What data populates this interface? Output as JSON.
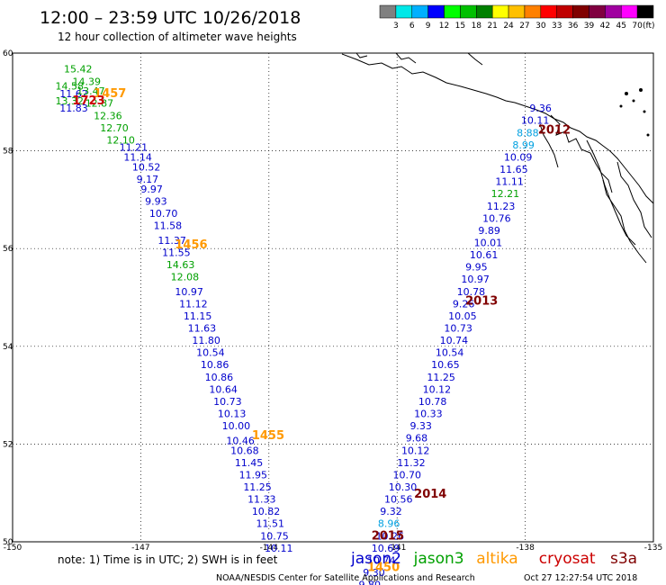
{
  "header": {
    "title": "12:00 – 23:59 UTC 10/26/2018",
    "subtitle": "12 hour collection of altimeter wave heights"
  },
  "colorbar": {
    "unit": "(ft)",
    "ticks": [
      "3",
      "6",
      "9",
      "12",
      "15",
      "18",
      "21",
      "24",
      "27",
      "30",
      "33",
      "36",
      "39",
      "42",
      "45",
      "70"
    ],
    "colors": [
      "#808080",
      "#00e8e8",
      "#00b0ff",
      "#0000ff",
      "#00ff00",
      "#00c000",
      "#008000",
      "#ffff00",
      "#ffc000",
      "#ff8000",
      "#ff0000",
      "#c00000",
      "#800000",
      "#800040",
      "#a000a0",
      "#ff00ff",
      "#000000"
    ]
  },
  "footer": {
    "note": "note:  1) Time is in UTC;  2) SWH is in feet",
    "legend": [
      {
        "name": "jason2",
        "color": "#0000cc"
      },
      {
        "name": "jason3",
        "color": "#00a000"
      },
      {
        "name": "altika",
        "color": "#ff9900"
      },
      {
        "name": "cryosat",
        "color": "#cc0000"
      },
      {
        "name": "s3a",
        "color": "#800000"
      }
    ],
    "credit": "NOAA/NESDIS Center for Satellite Applications and Research",
    "timestamp": "Oct 27 12:27:54 UTC 2018"
  },
  "chart_data": {
    "type": "scatter",
    "title": "12:00 – 23:59 UTC 10/26/2018",
    "subtitle": "12 hour collection of altimeter wave heights",
    "xlim": [
      -150,
      -135
    ],
    "ylim": [
      50,
      60
    ],
    "x_ticks": [
      "-150",
      "-147",
      "-144",
      "-141",
      "-138",
      "-135"
    ],
    "y_ticks": [
      "50",
      "52",
      "54",
      "56",
      "58",
      "60"
    ],
    "grid": true,
    "series": [
      {
        "name": "jason2",
        "color": "#0000cc",
        "points": [
          {
            "lon": -148.9,
            "lat": 59.1,
            "v": "11.62"
          },
          {
            "lon": -148.9,
            "lat": 58.8,
            "v": "11.83"
          },
          {
            "lon": -147.5,
            "lat": 58.0,
            "v": "11.21"
          },
          {
            "lon": -147.4,
            "lat": 57.8,
            "v": "11.14"
          },
          {
            "lon": -147.2,
            "lat": 57.6,
            "v": "10.52"
          },
          {
            "lon": -147.1,
            "lat": 57.35,
            "v": "9.17"
          },
          {
            "lon": -147.0,
            "lat": 57.15,
            "v": "9.97"
          },
          {
            "lon": -146.9,
            "lat": 56.9,
            "v": "9.93"
          },
          {
            "lon": -146.8,
            "lat": 56.65,
            "v": "10.70"
          },
          {
            "lon": -146.7,
            "lat": 56.4,
            "v": "11.58"
          },
          {
            "lon": -146.6,
            "lat": 56.1,
            "v": "11.37"
          },
          {
            "lon": -146.5,
            "lat": 55.85,
            "v": "11.55"
          },
          {
            "lon": -146.2,
            "lat": 55.05,
            "v": "10.97"
          },
          {
            "lon": -146.1,
            "lat": 54.8,
            "v": "11.12"
          },
          {
            "lon": -146.0,
            "lat": 54.55,
            "v": "11.15"
          },
          {
            "lon": -145.9,
            "lat": 54.3,
            "v": "11.63"
          },
          {
            "lon": -145.8,
            "lat": 54.05,
            "v": "11.80"
          },
          {
            "lon": -145.7,
            "lat": 53.8,
            "v": "10.54"
          },
          {
            "lon": -145.6,
            "lat": 53.55,
            "v": "10.86"
          },
          {
            "lon": -145.5,
            "lat": 53.3,
            "v": "10.86"
          },
          {
            "lon": -145.4,
            "lat": 53.05,
            "v": "10.64"
          },
          {
            "lon": -145.3,
            "lat": 52.8,
            "v": "10.73"
          },
          {
            "lon": -145.2,
            "lat": 52.55,
            "v": "10.13"
          },
          {
            "lon": -145.1,
            "lat": 52.3,
            "v": "10.00"
          },
          {
            "lon": -145.0,
            "lat": 52.0,
            "v": "10.46"
          },
          {
            "lon": -144.9,
            "lat": 51.8,
            "v": "10.68"
          },
          {
            "lon": -144.8,
            "lat": 51.55,
            "v": "11.45"
          },
          {
            "lon": -144.7,
            "lat": 51.3,
            "v": "11.95"
          },
          {
            "lon": -144.6,
            "lat": 51.05,
            "v": "11.25"
          },
          {
            "lon": -144.5,
            "lat": 50.8,
            "v": "11.33"
          },
          {
            "lon": -144.4,
            "lat": 50.55,
            "v": "10.82"
          },
          {
            "lon": -144.3,
            "lat": 50.3,
            "v": "11.51"
          },
          {
            "lon": -144.2,
            "lat": 50.05,
            "v": "10.75"
          },
          {
            "lon": -144.1,
            "lat": 49.8,
            "v": "10.11"
          },
          {
            "lon": -137.9,
            "lat": 58.8,
            "v": "9.36"
          },
          {
            "lon": -138.1,
            "lat": 58.55,
            "v": "10.11"
          },
          {
            "lon": -138.5,
            "lat": 57.8,
            "v": "10.09"
          },
          {
            "lon": -138.6,
            "lat": 57.55,
            "v": "11.65"
          },
          {
            "lon": -138.7,
            "lat": 57.3,
            "v": "11.11"
          },
          {
            "lon": -138.9,
            "lat": 56.8,
            "v": "11.23"
          },
          {
            "lon": -139.0,
            "lat": 56.55,
            "v": "10.76"
          },
          {
            "lon": -139.1,
            "lat": 56.3,
            "v": "9.89"
          },
          {
            "lon": -139.2,
            "lat": 56.05,
            "v": "10.01"
          },
          {
            "lon": -139.3,
            "lat": 55.8,
            "v": "10.61"
          },
          {
            "lon": -139.4,
            "lat": 55.55,
            "v": "9.95"
          },
          {
            "lon": -139.5,
            "lat": 55.3,
            "v": "10.97"
          },
          {
            "lon": -139.6,
            "lat": 55.05,
            "v": "10.78"
          },
          {
            "lon": -139.7,
            "lat": 54.8,
            "v": "9.26"
          },
          {
            "lon": -139.8,
            "lat": 54.55,
            "v": "10.05"
          },
          {
            "lon": -139.9,
            "lat": 54.3,
            "v": "10.73"
          },
          {
            "lon": -140.0,
            "lat": 54.05,
            "v": "10.74"
          },
          {
            "lon": -140.1,
            "lat": 53.8,
            "v": "10.54"
          },
          {
            "lon": -140.2,
            "lat": 53.55,
            "v": "10.65"
          },
          {
            "lon": -140.3,
            "lat": 53.3,
            "v": "11.25"
          },
          {
            "lon": -140.4,
            "lat": 53.05,
            "v": "10.12"
          },
          {
            "lon": -140.5,
            "lat": 52.8,
            "v": "10.78"
          },
          {
            "lon": -140.6,
            "lat": 52.55,
            "v": "10.33"
          },
          {
            "lon": -140.7,
            "lat": 52.3,
            "v": "9.33"
          },
          {
            "lon": -140.8,
            "lat": 52.05,
            "v": "9.68"
          },
          {
            "lon": -140.9,
            "lat": 51.8,
            "v": "10.12"
          },
          {
            "lon": -141.0,
            "lat": 51.55,
            "v": "11.32"
          },
          {
            "lon": -141.1,
            "lat": 51.3,
            "v": "10.70"
          },
          {
            "lon": -141.2,
            "lat": 51.05,
            "v": "10.30"
          },
          {
            "lon": -141.3,
            "lat": 50.8,
            "v": "10.56"
          },
          {
            "lon": -141.4,
            "lat": 50.55,
            "v": "9.32"
          },
          {
            "lon": -141.5,
            "lat": 50.05,
            "v": "10.26"
          },
          {
            "lon": -141.6,
            "lat": 49.8,
            "v": "10.69"
          },
          {
            "lon": -141.7,
            "lat": 49.55,
            "v": "10.74"
          },
          {
            "lon": -141.8,
            "lat": 49.3,
            "v": "9.30"
          },
          {
            "lon": -141.9,
            "lat": 49.05,
            "v": "9.80"
          }
        ]
      },
      {
        "name": "jason3",
        "color": "#00a000",
        "points": [
          {
            "lon": -148.8,
            "lat": 59.6,
            "v": "15.42"
          },
          {
            "lon": -148.6,
            "lat": 59.35,
            "v": "14.39"
          },
          {
            "lon": -149.0,
            "lat": 59.25,
            "v": "14.58"
          },
          {
            "lon": -148.5,
            "lat": 59.15,
            "v": "13.47"
          },
          {
            "lon": -149.0,
            "lat": 58.95,
            "v": "13.32"
          },
          {
            "lon": -148.3,
            "lat": 58.9,
            "v": "12.87"
          },
          {
            "lon": -148.1,
            "lat": 58.65,
            "v": "12.36"
          },
          {
            "lon": -147.95,
            "lat": 58.4,
            "v": "12.70"
          },
          {
            "lon": -147.8,
            "lat": 58.15,
            "v": "12.10"
          },
          {
            "lon": -146.4,
            "lat": 55.6,
            "v": "14.63"
          },
          {
            "lon": -146.3,
            "lat": 55.35,
            "v": "12.08"
          },
          {
            "lon": -138.8,
            "lat": 57.05,
            "v": "12.21"
          }
        ]
      },
      {
        "name": "altika",
        "color": "#ff9900",
        "points": [
          {
            "lon": -148.1,
            "lat": 59.1,
            "v": "1457"
          },
          {
            "lon": -146.2,
            "lat": 56.0,
            "v": "1456"
          },
          {
            "lon": -144.4,
            "lat": 52.1,
            "v": "1455"
          },
          {
            "lon": -141.7,
            "lat": 49.4,
            "v": "1450"
          }
        ]
      },
      {
        "name": "cryosat",
        "color": "#cc0000",
        "points": [
          {
            "lon": -148.6,
            "lat": 58.95,
            "v": "1723"
          }
        ]
      },
      {
        "name": "s3a",
        "color": "#800000",
        "points": [
          {
            "lon": -137.7,
            "lat": 58.35,
            "v": "2012"
          },
          {
            "lon": -139.4,
            "lat": 54.85,
            "v": "2013"
          },
          {
            "lon": -140.6,
            "lat": 50.9,
            "v": "2014"
          },
          {
            "lon": -141.6,
            "lat": 50.05,
            "v": "2015"
          }
        ]
      },
      {
        "name": "",
        "color": "#00a0e0",
        "points": [
          {
            "lon": -138.2,
            "lat": 58.3,
            "v": "8.88"
          },
          {
            "lon": -138.3,
            "lat": 58.05,
            "v": "8.99"
          },
          {
            "lon": -141.45,
            "lat": 50.3,
            "v": "8.96"
          }
        ]
      }
    ]
  }
}
